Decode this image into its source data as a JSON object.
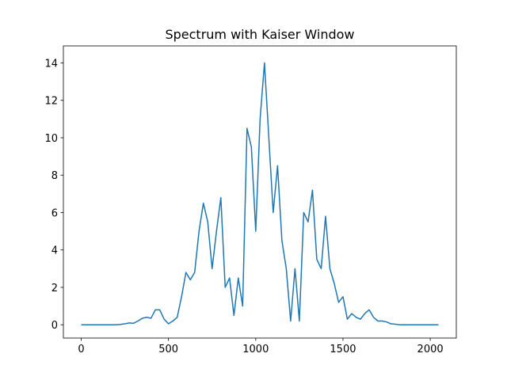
{
  "chart_data": {
    "type": "line",
    "title": "Spectrum with Kaiser Window",
    "x": [
      0,
      25,
      50,
      75,
      100,
      125,
      150,
      175,
      200,
      225,
      250,
      275,
      300,
      325,
      350,
      375,
      400,
      425,
      450,
      475,
      500,
      525,
      550,
      575,
      600,
      625,
      650,
      675,
      700,
      725,
      750,
      775,
      800,
      825,
      850,
      875,
      900,
      925,
      950,
      975,
      1000,
      1025,
      1050,
      1075,
      1100,
      1125,
      1150,
      1175,
      1200,
      1225,
      1250,
      1275,
      1300,
      1325,
      1350,
      1375,
      1400,
      1425,
      1450,
      1475,
      1500,
      1525,
      1550,
      1575,
      1600,
      1625,
      1650,
      1675,
      1700,
      1725,
      1750,
      1775,
      1800,
      1825,
      1850,
      1875,
      1900,
      1925,
      1950,
      1975,
      2000,
      2025,
      2047
    ],
    "series": [
      {
        "color": "#1f77b4",
        "values": [
          0,
          0,
          0,
          0,
          0,
          0,
          0,
          0,
          0,
          0.02,
          0.05,
          0.1,
          0.08,
          0.2,
          0.35,
          0.4,
          0.35,
          0.8,
          0.8,
          0.3,
          0.05,
          0.2,
          0.4,
          1.5,
          2.8,
          2.4,
          2.8,
          5.0,
          6.5,
          5.5,
          3.0,
          5.0,
          6.8,
          2.0,
          2.5,
          0.5,
          2.5,
          1.0,
          10.5,
          9.5,
          5.0,
          11.0,
          14.0,
          10.0,
          6.0,
          8.5,
          4.5,
          3.0,
          0.2,
          3.0,
          0.2,
          6.0,
          5.5,
          7.2,
          3.5,
          3.0,
          5.8,
          3.0,
          2.2,
          1.2,
          1.5,
          0.3,
          0.6,
          0.4,
          0.3,
          0.6,
          0.8,
          0.4,
          0.2,
          0.2,
          0.15,
          0.05,
          0.03,
          0,
          0,
          0,
          0,
          0,
          0,
          0,
          0,
          0,
          0
        ]
      }
    ],
    "xlim": [
      -102.35,
      2149.35
    ],
    "ylim": [
      -0.71,
      14.91
    ],
    "xticks": [
      0,
      500,
      1000,
      1500,
      2000
    ],
    "yticks": [
      0,
      2,
      4,
      6,
      8,
      10,
      12,
      14
    ]
  }
}
